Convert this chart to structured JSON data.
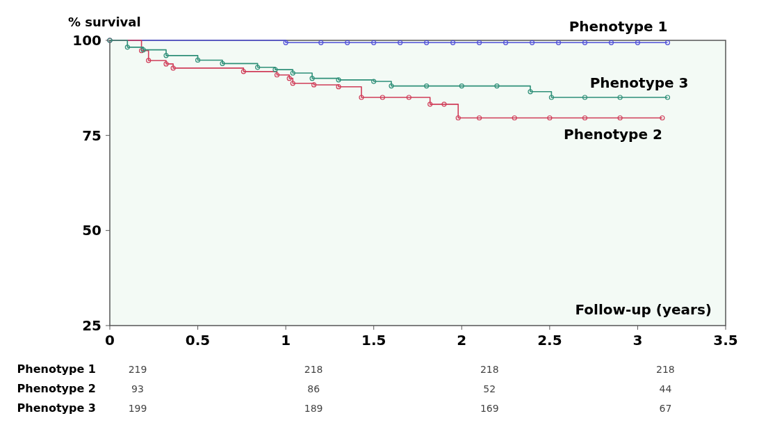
{
  "chart_data": {
    "type": "step",
    "ylabel": "% survival",
    "xlabel": "Follow-up (years)",
    "xlim": [
      0,
      3.5
    ],
    "xticks": [
      0,
      0.5,
      1,
      1.5,
      2,
      2.5,
      3,
      3.5
    ],
    "ylim": [
      25,
      100
    ],
    "yticks": [
      25,
      50,
      75,
      100
    ],
    "marker": "circle",
    "grid": false,
    "series": [
      {
        "name": "Phenotype 1",
        "color": "#5050d8",
        "x": [
          0,
          1.0,
          1.2,
          1.35,
          1.5,
          1.65,
          1.8,
          1.95,
          2.1,
          2.25,
          2.4,
          2.55,
          2.7,
          2.85,
          3.0,
          3.17
        ],
        "values": [
          100,
          99.4,
          99.4,
          99.4,
          99.4,
          99.4,
          99.4,
          99.4,
          99.4,
          99.4,
          99.4,
          99.4,
          99.4,
          99.4,
          99.4,
          99.4
        ]
      },
      {
        "name": "Phenotype 2",
        "color": "#d03c58",
        "x": [
          0,
          0.18,
          0.22,
          0.32,
          0.36,
          0.76,
          0.95,
          1.02,
          1.04,
          1.16,
          1.3,
          1.43,
          1.55,
          1.7,
          1.82,
          1.9,
          1.98,
          2.1,
          2.3,
          2.5,
          2.7,
          2.9,
          3.14
        ],
        "values": [
          100,
          97.3,
          94.7,
          93.8,
          92.7,
          91.8,
          90.9,
          90.0,
          88.7,
          88.3,
          87.8,
          85.0,
          85.0,
          85.0,
          83.2,
          83.2,
          79.6,
          79.6,
          79.6,
          79.6,
          79.6,
          79.6,
          79.6
        ]
      },
      {
        "name": "Phenotype 3",
        "color": "#2e8f78",
        "x": [
          0,
          0.1,
          0.19,
          0.32,
          0.5,
          0.64,
          0.84,
          0.94,
          1.04,
          1.15,
          1.3,
          1.5,
          1.6,
          1.8,
          2.0,
          2.2,
          2.39,
          2.51,
          2.7,
          2.9,
          3.17
        ],
        "values": [
          100,
          98.2,
          97.5,
          96.0,
          94.8,
          93.9,
          92.9,
          92.3,
          91.4,
          90.0,
          89.6,
          89.2,
          88.0,
          88.0,
          88.0,
          88.0,
          86.5,
          85.0,
          85.0,
          85.0,
          85.0
        ]
      }
    ],
    "annotations": [
      "Phenotype 1",
      "219",
      "218",
      "218",
      "218",
      "Phenotype 2",
      "93",
      "86",
      "52",
      "44",
      "Phenotype 3",
      "199",
      "189",
      "169",
      "67"
    ]
  }
}
